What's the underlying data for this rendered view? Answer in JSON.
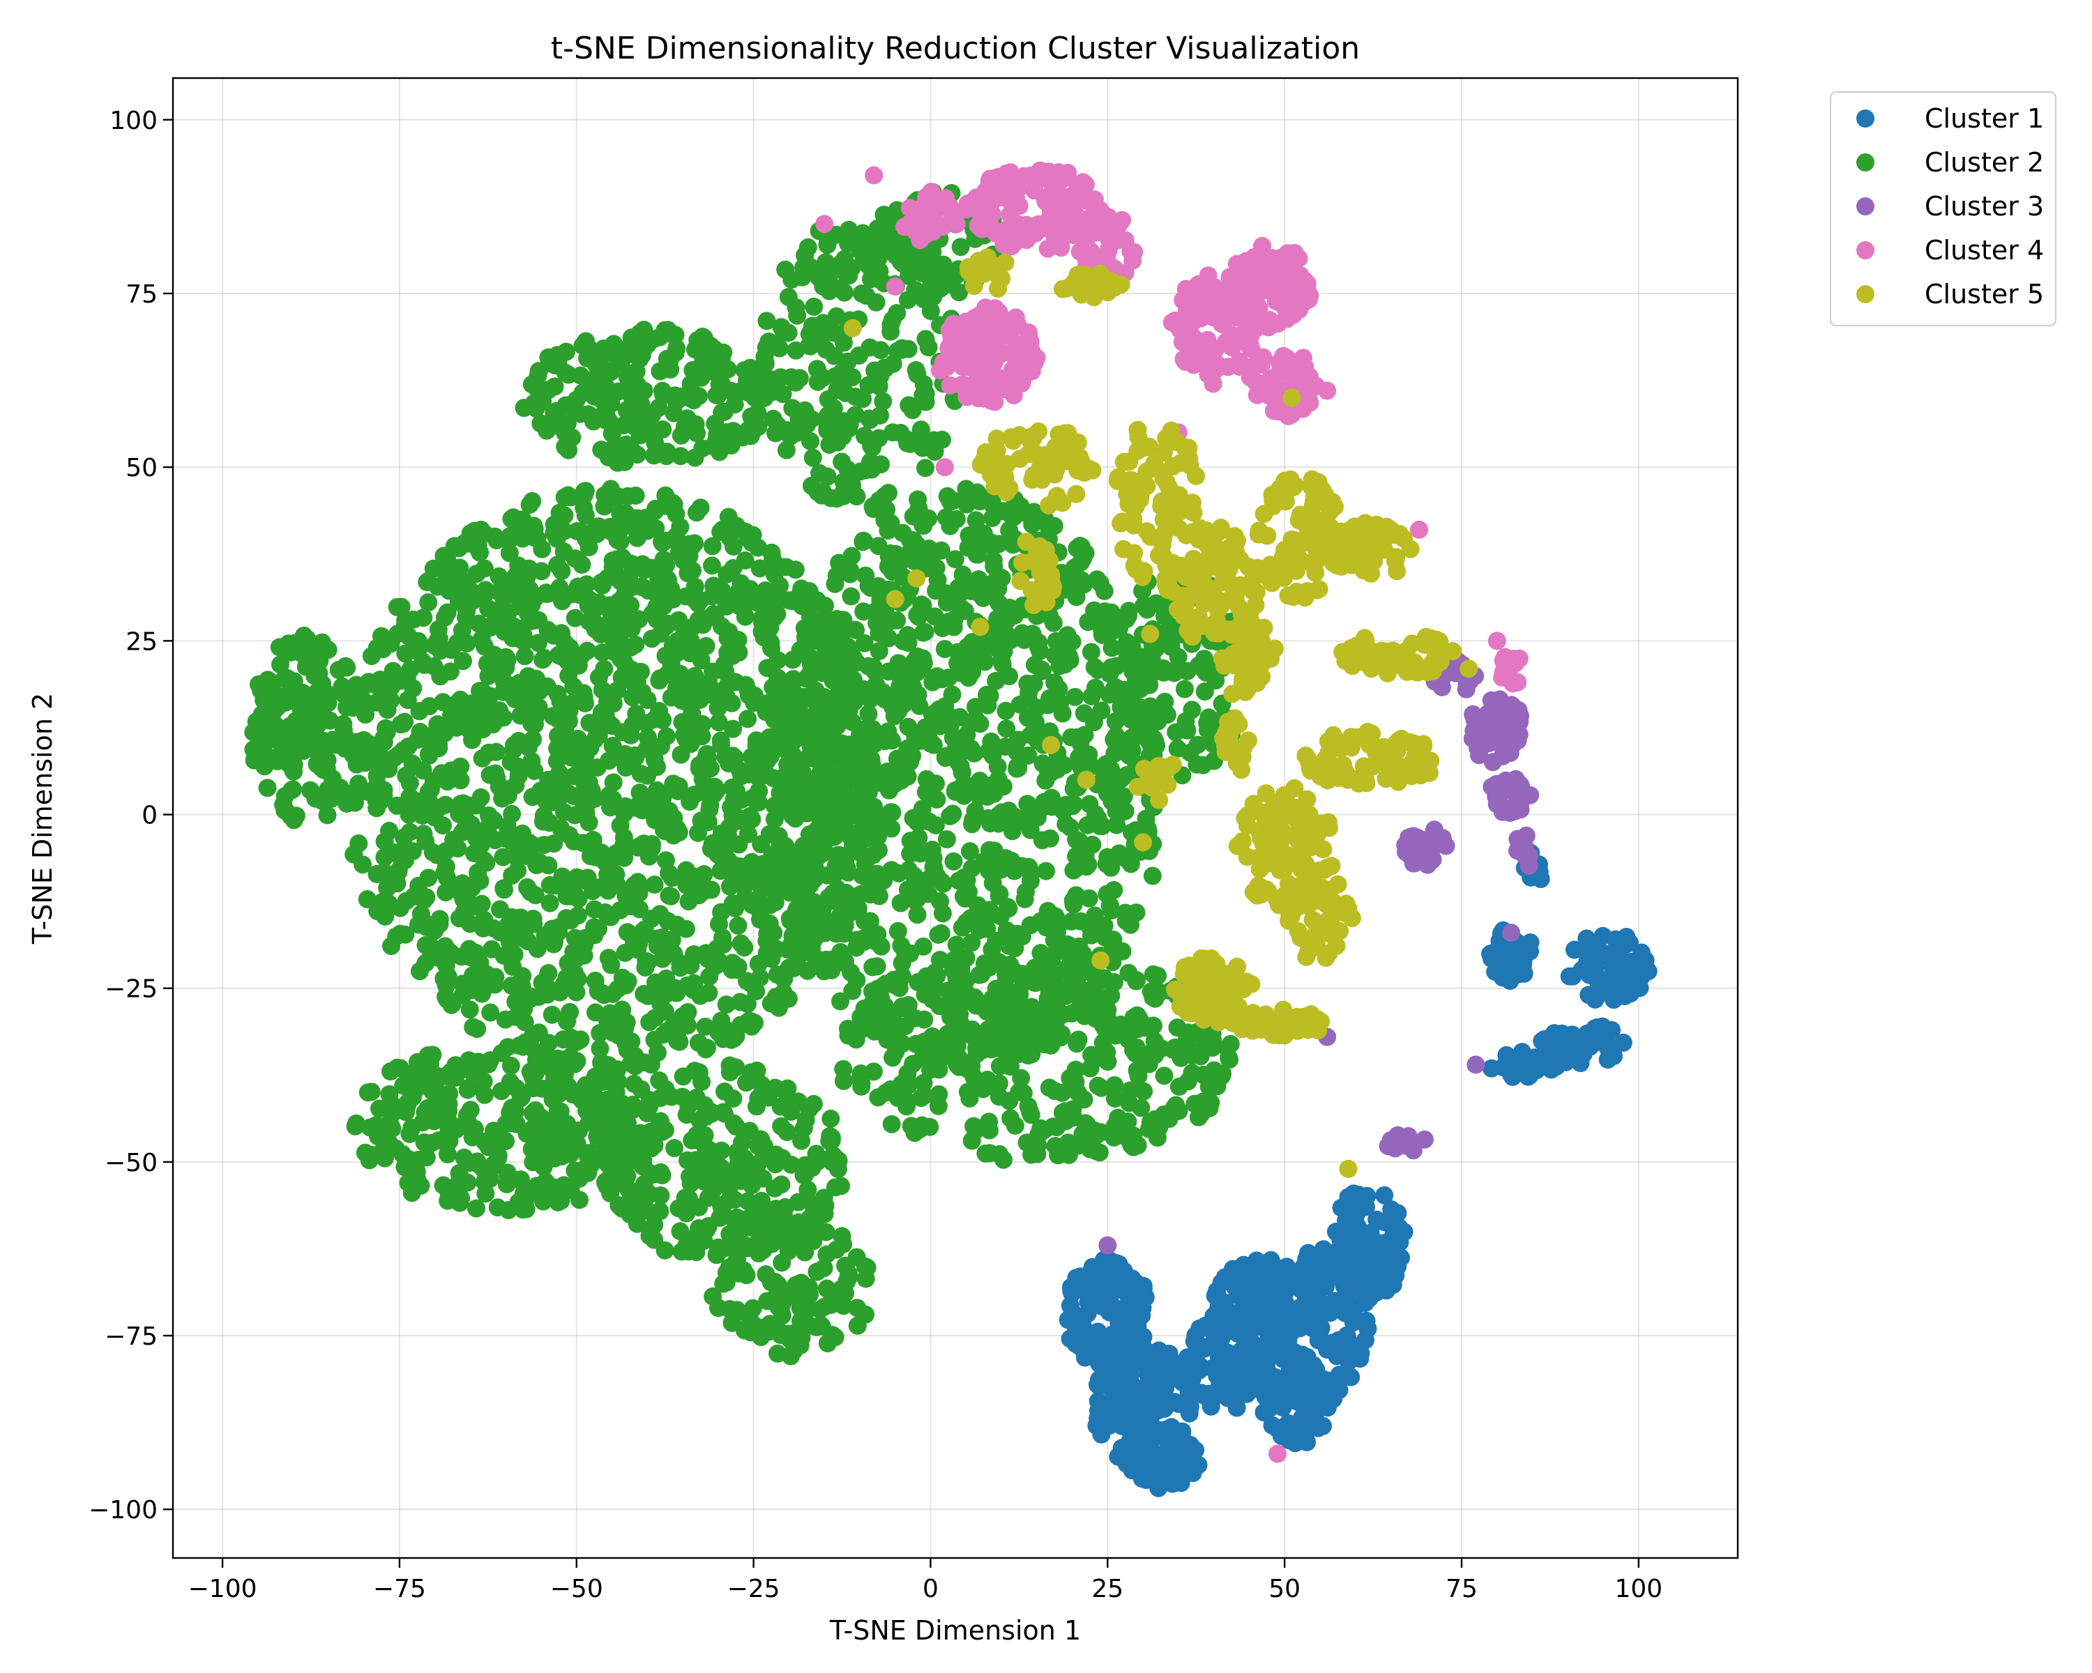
{
  "chart_data": {
    "type": "scatter",
    "title": "t-SNE Dimensionality Reduction Cluster Visualization",
    "xlabel": "T-SNE Dimension 1",
    "ylabel": "T-SNE Dimension 2",
    "xlim": [
      -107,
      114
    ],
    "ylim": [
      -107,
      106
    ],
    "xticks": [
      -100,
      -75,
      -50,
      -25,
      0,
      25,
      50,
      75,
      100
    ],
    "yticks": [
      -100,
      -75,
      -50,
      -25,
      0,
      25,
      50,
      75,
      100
    ],
    "xtick_labels": [
      "−100",
      "−75",
      "−50",
      "−25",
      "0",
      "25",
      "50",
      "75",
      "100"
    ],
    "ytick_labels": [
      "−100",
      "−75",
      "−50",
      "−25",
      "0",
      "25",
      "50",
      "75",
      "100"
    ],
    "grid": true,
    "legend_position": "outside-top-right",
    "series": [
      {
        "name": "Cluster 1",
        "color": "#1f77b4",
        "regions": [
          {
            "cx": 25,
            "cy": -72,
            "rx": 6,
            "ry": 8,
            "n": 130
          },
          {
            "cx": 30,
            "cy": -85,
            "rx": 7,
            "ry": 9,
            "n": 150
          },
          {
            "cx": 33,
            "cy": -93,
            "rx": 5,
            "ry": 4,
            "n": 70
          },
          {
            "cx": 42,
            "cy": -78,
            "rx": 6,
            "ry": 8,
            "n": 90
          },
          {
            "cx": 47,
            "cy": -70,
            "rx": 7,
            "ry": 6,
            "n": 90
          },
          {
            "cx": 55,
            "cy": -72,
            "rx": 7,
            "ry": 12,
            "n": 130
          },
          {
            "cx": 62,
            "cy": -62,
            "rx": 5,
            "ry": 9,
            "n": 80
          },
          {
            "cx": 52,
            "cy": -85,
            "rx": 5,
            "ry": 6,
            "n": 60
          },
          {
            "cx": 82,
            "cy": -20,
            "rx": 3,
            "ry": 4,
            "n": 30
          },
          {
            "cx": 92,
            "cy": -33,
            "rx": 6,
            "ry": 3,
            "n": 40
          },
          {
            "cx": 96,
            "cy": -22,
            "rx": 6,
            "ry": 5,
            "n": 60
          },
          {
            "cx": 84,
            "cy": -36,
            "rx": 5,
            "ry": 2,
            "n": 25
          },
          {
            "cx": 85,
            "cy": -8,
            "rx": 1.5,
            "ry": 3,
            "n": 10
          }
        ]
      },
      {
        "name": "Cluster 2",
        "color": "#2ca02c",
        "regions": [
          {
            "cx": -45,
            "cy": 5,
            "rx": 38,
            "ry": 42,
            "n": 1600
          },
          {
            "cx": 5,
            "cy": 5,
            "rx": 28,
            "ry": 42,
            "n": 1100
          },
          {
            "cx": -88,
            "cy": 12,
            "rx": 8,
            "ry": 14,
            "n": 140
          },
          {
            "cx": -40,
            "cy": 60,
            "rx": 18,
            "ry": 10,
            "n": 220
          },
          {
            "cx": -10,
            "cy": 65,
            "rx": 14,
            "ry": 22,
            "n": 230
          },
          {
            "cx": -60,
            "cy": -45,
            "rx": 22,
            "ry": 12,
            "n": 300
          },
          {
            "cx": -30,
            "cy": -50,
            "rx": 18,
            "ry": 14,
            "n": 260
          },
          {
            "cx": -20,
            "cy": -68,
            "rx": 12,
            "ry": 10,
            "n": 120
          },
          {
            "cx": 15,
            "cy": -35,
            "rx": 28,
            "ry": 15,
            "n": 350
          },
          {
            "cx": 35,
            "cy": 20,
            "rx": 10,
            "ry": 15,
            "n": 120
          },
          {
            "cx": 0,
            "cy": 82,
            "rx": 10,
            "ry": 8,
            "n": 80
          }
        ]
      },
      {
        "name": "Cluster 3",
        "color": "#9467bd",
        "regions": [
          {
            "cx": 80,
            "cy": 12,
            "rx": 4,
            "ry": 5,
            "n": 50
          },
          {
            "cx": 82,
            "cy": 3,
            "rx": 3,
            "ry": 3,
            "n": 25
          },
          {
            "cx": 70,
            "cy": -5,
            "rx": 4,
            "ry": 3,
            "n": 30
          },
          {
            "cx": 74,
            "cy": 20,
            "rx": 3,
            "ry": 3,
            "n": 15
          },
          {
            "cx": 84,
            "cy": -5,
            "rx": 1.5,
            "ry": 3,
            "n": 10
          },
          {
            "cx": 67,
            "cy": -47,
            "rx": 3,
            "ry": 1.5,
            "n": 12
          }
        ],
        "points": [
          [
            25,
            -62
          ],
          [
            82,
            -17
          ],
          [
            77,
            -36
          ],
          [
            56,
            -32
          ]
        ]
      },
      {
        "name": "Cluster 4",
        "color": "#e377c2",
        "regions": [
          {
            "cx": 15,
            "cy": 87,
            "rx": 10,
            "ry": 6,
            "n": 120
          },
          {
            "cx": 8,
            "cy": 66,
            "rx": 7,
            "ry": 7,
            "n": 110
          },
          {
            "cx": 25,
            "cy": 82,
            "rx": 4,
            "ry": 6,
            "n": 40
          },
          {
            "cx": 40,
            "cy": 70,
            "rx": 6,
            "ry": 8,
            "n": 100
          },
          {
            "cx": 48,
            "cy": 76,
            "rx": 6,
            "ry": 6,
            "n": 90
          },
          {
            "cx": 50,
            "cy": 62,
            "rx": 5,
            "ry": 5,
            "n": 50
          },
          {
            "cx": 0,
            "cy": 86,
            "rx": 4,
            "ry": 4,
            "n": 30
          },
          {
            "cx": 82,
            "cy": 21,
            "rx": 1.5,
            "ry": 3,
            "n": 15
          }
        ],
        "points": [
          [
            -15,
            85
          ],
          [
            -8,
            92
          ],
          [
            -5,
            76
          ],
          [
            2,
            50
          ],
          [
            49,
            -92
          ],
          [
            56,
            61
          ],
          [
            69,
            41
          ],
          [
            80,
            25
          ],
          [
            35,
            55
          ]
        ]
      },
      {
        "name": "Cluster 5",
        "color": "#bcbd22",
        "regions": [
          {
            "cx": 15,
            "cy": 50,
            "rx": 8,
            "ry": 6,
            "n": 60
          },
          {
            "cx": 32,
            "cy": 45,
            "rx": 6,
            "ry": 12,
            "n": 80
          },
          {
            "cx": 40,
            "cy": 33,
            "rx": 7,
            "ry": 9,
            "n": 90
          },
          {
            "cx": 52,
            "cy": 40,
            "rx": 6,
            "ry": 9,
            "n": 80
          },
          {
            "cx": 62,
            "cy": 38,
            "rx": 6,
            "ry": 4,
            "n": 50
          },
          {
            "cx": 66,
            "cy": 23,
            "rx": 8,
            "ry": 3,
            "n": 50
          },
          {
            "cx": 45,
            "cy": 22,
            "rx": 4,
            "ry": 6,
            "n": 40
          },
          {
            "cx": 43,
            "cy": 10,
            "rx": 2,
            "ry": 4,
            "n": 20
          },
          {
            "cx": 62,
            "cy": 8,
            "rx": 10,
            "ry": 4,
            "n": 70
          },
          {
            "cx": 50,
            "cy": -5,
            "rx": 7,
            "ry": 9,
            "n": 110
          },
          {
            "cx": 55,
            "cy": -15,
            "rx": 5,
            "ry": 6,
            "n": 50
          },
          {
            "cx": 40,
            "cy": -25,
            "rx": 6,
            "ry": 5,
            "n": 70
          },
          {
            "cx": 48,
            "cy": -30,
            "rx": 8,
            "ry": 2,
            "n": 40
          },
          {
            "cx": 15,
            "cy": 35,
            "rx": 3,
            "ry": 5,
            "n": 30
          },
          {
            "cx": 8,
            "cy": 78,
            "rx": 3,
            "ry": 3,
            "n": 20
          },
          {
            "cx": 22,
            "cy": 76,
            "rx": 6,
            "ry": 2,
            "n": 20
          },
          {
            "cx": 32,
            "cy": 5,
            "rx": 4,
            "ry": 3,
            "n": 15
          }
        ],
        "points": [
          [
            -11,
            70
          ],
          [
            -5,
            31
          ],
          [
            -2,
            34
          ],
          [
            7,
            27
          ],
          [
            24,
            -21
          ],
          [
            30,
            -4
          ],
          [
            22,
            5
          ],
          [
            17,
            10
          ],
          [
            59,
            -51
          ],
          [
            76,
            21
          ],
          [
            51,
            60
          ],
          [
            31,
            26
          ]
        ]
      }
    ]
  }
}
